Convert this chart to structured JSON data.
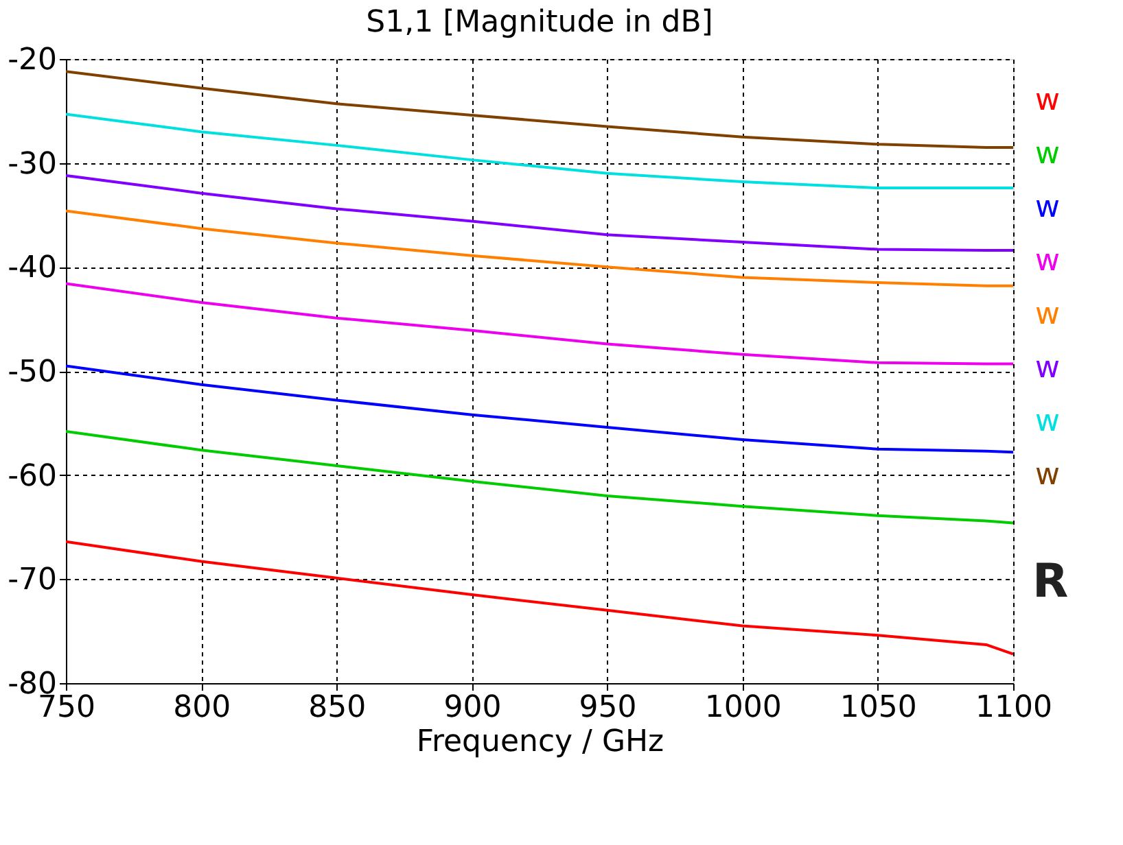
{
  "chart_data": {
    "type": "line",
    "title": "S1,1 [Magnitude in dB]",
    "xlabel": "Frequency / GHz",
    "x": [
      750,
      800,
      850,
      900,
      950,
      1000,
      1050,
      1090,
      1100
    ],
    "series": [
      {
        "name": "w",
        "color": "#ff0000",
        "values": [
          -66.4,
          -68.3,
          -69.9,
          -71.5,
          -73.0,
          -74.5,
          -75.4,
          -76.3,
          -77.2
        ]
      },
      {
        "name": "w",
        "color": "#00cc00",
        "values": [
          -55.8,
          -57.6,
          -59.1,
          -60.6,
          -62.0,
          -63.0,
          -63.9,
          -64.4,
          -64.6
        ]
      },
      {
        "name": "w",
        "color": "#0000ff",
        "values": [
          -49.5,
          -51.3,
          -52.8,
          -54.2,
          -55.4,
          -56.6,
          -57.5,
          -57.7,
          -57.8
        ]
      },
      {
        "name": "w",
        "color": "#ee00ee",
        "values": [
          -41.6,
          -43.4,
          -44.9,
          -46.1,
          -47.4,
          -48.4,
          -49.2,
          -49.3,
          -49.3
        ]
      },
      {
        "name": "w",
        "color": "#ff8000",
        "values": [
          -34.6,
          -36.3,
          -37.7,
          -38.9,
          -40.0,
          -41.0,
          -41.5,
          -41.8,
          -41.8
        ]
      },
      {
        "name": "w",
        "color": "#8000ff",
        "values": [
          -31.2,
          -32.9,
          -34.4,
          -35.6,
          -36.9,
          -37.6,
          -38.3,
          -38.4,
          -38.4
        ]
      },
      {
        "name": "w",
        "color": "#00e0e0",
        "values": [
          -25.3,
          -27.0,
          -28.3,
          -29.7,
          -31.0,
          -31.8,
          -32.4,
          -32.4,
          -32.4
        ]
      },
      {
        "name": "w",
        "color": "#804000",
        "values": [
          -21.2,
          -22.8,
          -24.3,
          -25.4,
          -26.5,
          -27.5,
          -28.2,
          -28.5,
          -28.5
        ]
      }
    ],
    "annotations": [
      "R"
    ],
    "xlim": [
      750,
      1100
    ],
    "xticks": [
      750,
      800,
      850,
      900,
      950,
      1000,
      1050,
      1100
    ],
    "ylim": [
      -80,
      -20
    ],
    "yticks": [
      -80,
      -70,
      -60,
      -50,
      -40,
      -30,
      -20
    ],
    "grid": true,
    "legend": "right",
    "marker": "none",
    "line_style": "solid"
  }
}
